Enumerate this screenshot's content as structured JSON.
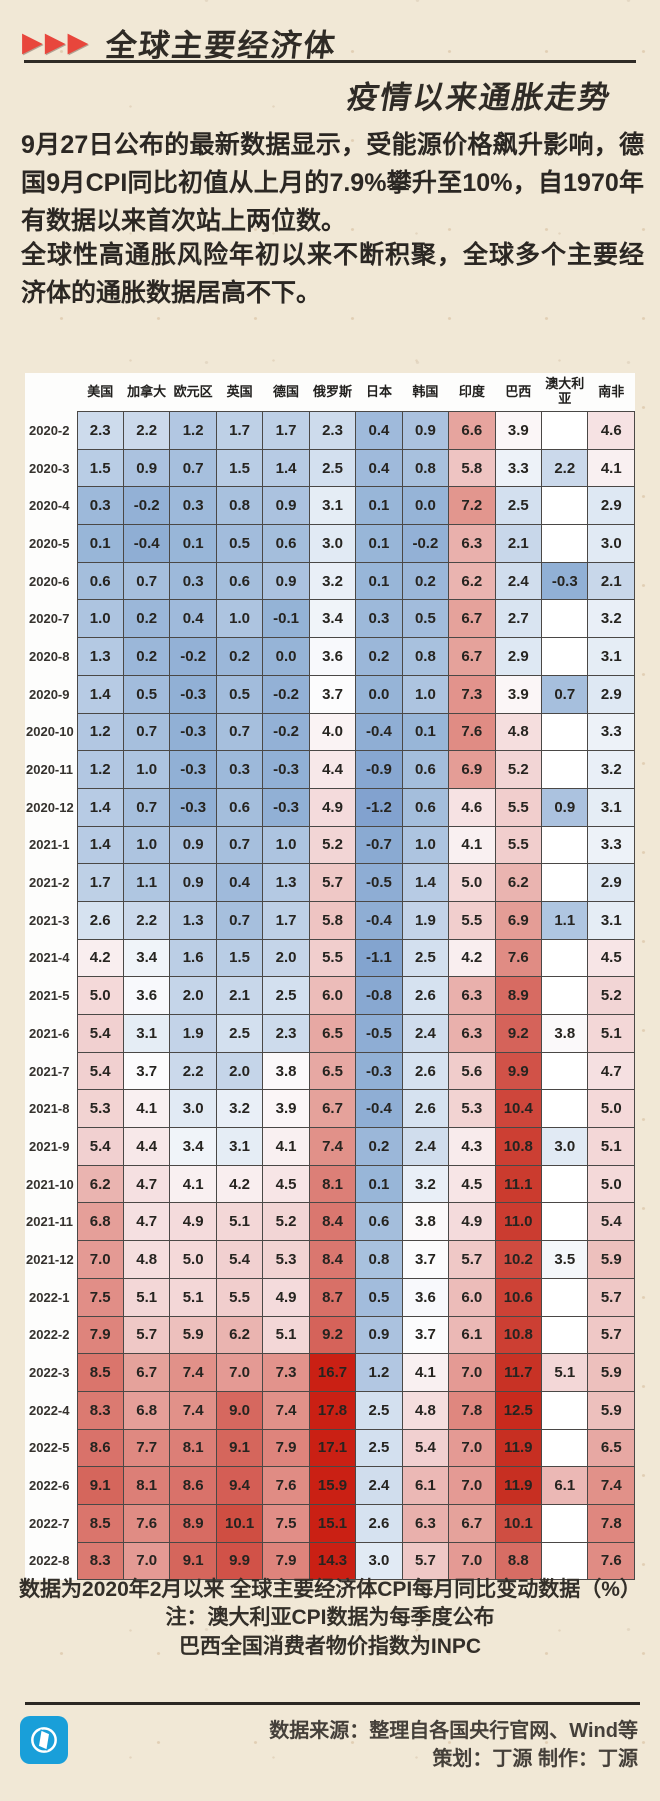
{
  "header": {
    "arrows_icon": "▶▶▶",
    "title_top": "全球主要经济体",
    "title_bottom": "疫情以来通胀走势",
    "accent_color": "#e8463c"
  },
  "intro": {
    "paragraph1": "9月27日公布的最新数据显示，受能源价格飙升影响，德国9月CPI同比初值从上月的7.9%攀升至10%，自1970年有数据以来首次站上两位数。",
    "paragraph2": "全球性高通胀风险年初以来不断积聚，全球多个主要经济体的通胀数据居高不下。"
  },
  "chart_data": {
    "type": "heatmap",
    "title": "全球主要经济体疫情以来通胀走势",
    "unit": "%",
    "columns": [
      "美国",
      "加拿大",
      "欧元区",
      "英国",
      "德国",
      "俄罗斯",
      "日本",
      "韩国",
      "印度",
      "巴西",
      "澳大利亚",
      "南非"
    ],
    "rows": [
      "2020-2",
      "2020-3",
      "2020-4",
      "2020-5",
      "2020-6",
      "2020-7",
      "2020-8",
      "2020-9",
      "2020-10",
      "2020-11",
      "2020-12",
      "2021-1",
      "2021-2",
      "2021-3",
      "2021-4",
      "2021-5",
      "2021-6",
      "2021-7",
      "2021-8",
      "2021-9",
      "2021-10",
      "2021-11",
      "2021-12",
      "2022-1",
      "2022-2",
      "2022-3",
      "2022-4",
      "2022-5",
      "2022-6",
      "2022-7",
      "2022-8"
    ],
    "values": [
      [
        2.3,
        2.2,
        1.2,
        1.7,
        1.7,
        2.3,
        0.4,
        0.9,
        6.6,
        3.9,
        null,
        4.6
      ],
      [
        1.5,
        0.9,
        0.7,
        1.5,
        1.4,
        2.5,
        0.4,
        0.8,
        5.8,
        3.3,
        2.2,
        4.1
      ],
      [
        0.3,
        -0.2,
        0.3,
        0.8,
        0.9,
        3.1,
        0.1,
        0.0,
        7.2,
        2.5,
        null,
        2.9
      ],
      [
        0.1,
        -0.4,
        0.1,
        0.5,
        0.6,
        3.0,
        0.1,
        -0.2,
        6.3,
        2.1,
        null,
        3.0
      ],
      [
        0.6,
        0.7,
        0.3,
        0.6,
        0.9,
        3.2,
        0.1,
        0.2,
        6.2,
        2.4,
        -0.3,
        2.1
      ],
      [
        1.0,
        0.2,
        0.4,
        1.0,
        -0.1,
        3.4,
        0.3,
        0.5,
        6.7,
        2.7,
        null,
        3.2
      ],
      [
        1.3,
        0.2,
        -0.2,
        0.2,
        0.0,
        3.6,
        0.2,
        0.8,
        6.7,
        2.9,
        null,
        3.1
      ],
      [
        1.4,
        0.5,
        -0.3,
        0.5,
        -0.2,
        3.7,
        0.0,
        1.0,
        7.3,
        3.9,
        0.7,
        2.9
      ],
      [
        1.2,
        0.7,
        -0.3,
        0.7,
        -0.2,
        4.0,
        -0.4,
        0.1,
        7.6,
        4.8,
        null,
        3.3
      ],
      [
        1.2,
        1.0,
        -0.3,
        0.3,
        -0.3,
        4.4,
        -0.9,
        0.6,
        6.9,
        5.2,
        null,
        3.2
      ],
      [
        1.4,
        0.7,
        -0.3,
        0.6,
        -0.3,
        4.9,
        -1.2,
        0.6,
        4.6,
        5.5,
        0.9,
        3.1
      ],
      [
        1.4,
        1.0,
        0.9,
        0.7,
        1.0,
        5.2,
        -0.7,
        1.0,
        4.1,
        5.5,
        null,
        3.3
      ],
      [
        1.7,
        1.1,
        0.9,
        0.4,
        1.3,
        5.7,
        -0.5,
        1.4,
        5.0,
        6.2,
        null,
        2.9
      ],
      [
        2.6,
        2.2,
        1.3,
        0.7,
        1.7,
        5.8,
        -0.4,
        1.9,
        5.5,
        6.9,
        1.1,
        3.1
      ],
      [
        4.2,
        3.4,
        1.6,
        1.5,
        2.0,
        5.5,
        -1.1,
        2.5,
        4.2,
        7.6,
        null,
        4.5
      ],
      [
        5.0,
        3.6,
        2.0,
        2.1,
        2.5,
        6.0,
        -0.8,
        2.6,
        6.3,
        8.9,
        null,
        5.2
      ],
      [
        5.4,
        3.1,
        1.9,
        2.5,
        2.3,
        6.5,
        -0.5,
        2.4,
        6.3,
        9.2,
        3.8,
        5.1
      ],
      [
        5.4,
        3.7,
        2.2,
        2.0,
        3.8,
        6.5,
        -0.3,
        2.6,
        5.6,
        9.9,
        null,
        4.7
      ],
      [
        5.3,
        4.1,
        3.0,
        3.2,
        3.9,
        6.7,
        -0.4,
        2.6,
        5.3,
        10.4,
        null,
        5.0
      ],
      [
        5.4,
        4.4,
        3.4,
        3.1,
        4.1,
        7.4,
        0.2,
        2.4,
        4.3,
        10.8,
        3.0,
        5.1
      ],
      [
        6.2,
        4.7,
        4.1,
        4.2,
        4.5,
        8.1,
        0.1,
        3.2,
        4.5,
        11.1,
        null,
        5.0
      ],
      [
        6.8,
        4.7,
        4.9,
        5.1,
        5.2,
        8.4,
        0.6,
        3.8,
        4.9,
        11.0,
        null,
        5.4
      ],
      [
        7.0,
        4.8,
        5.0,
        5.4,
        5.3,
        8.4,
        0.8,
        3.7,
        5.7,
        10.2,
        3.5,
        5.9
      ],
      [
        7.5,
        5.1,
        5.1,
        5.5,
        4.9,
        8.7,
        0.5,
        3.6,
        6.0,
        10.6,
        null,
        5.7
      ],
      [
        7.9,
        5.7,
        5.9,
        6.2,
        5.1,
        9.2,
        0.9,
        3.7,
        6.1,
        10.8,
        null,
        5.7
      ],
      [
        8.5,
        6.7,
        7.4,
        7.0,
        7.3,
        16.7,
        1.2,
        4.1,
        7.0,
        11.7,
        5.1,
        5.9
      ],
      [
        8.3,
        6.8,
        7.4,
        9.0,
        7.4,
        17.8,
        2.5,
        4.8,
        7.8,
        12.5,
        null,
        5.9
      ],
      [
        8.6,
        7.7,
        8.1,
        9.1,
        7.9,
        17.1,
        2.5,
        5.4,
        7.0,
        11.9,
        null,
        6.5
      ],
      [
        9.1,
        8.1,
        8.6,
        9.4,
        7.6,
        15.9,
        2.4,
        6.1,
        7.0,
        11.9,
        6.1,
        7.4
      ],
      [
        8.5,
        7.6,
        8.9,
        10.1,
        7.5,
        15.1,
        2.6,
        6.3,
        6.7,
        10.1,
        null,
        7.8
      ],
      [
        8.3,
        7.0,
        9.1,
        9.9,
        7.9,
        14.3,
        3.0,
        5.7,
        7.0,
        8.8,
        null,
        7.6
      ]
    ],
    "color_scale": {
      "low_color": "#80a1ce",
      "mid_color": "#fcfcfd",
      "high_color": "#ca2014",
      "midpoint": 3.7,
      "min": -1.2,
      "max": 17.8
    },
    "grid": true,
    "legend": "none"
  },
  "notes": {
    "lines": [
      "数据为2020年2月以来 全球主要经济体CPI每月同比变动数据（%）",
      "注：澳大利亚CPI数据为每季度公布",
      "巴西全国消费者物价指数为INPC"
    ]
  },
  "footer": {
    "source_line": "数据来源：整理自各国央行官网、Wind等",
    "credit_line": "策划：丁源 制作：丁源",
    "logo_color": "#199fd9"
  }
}
